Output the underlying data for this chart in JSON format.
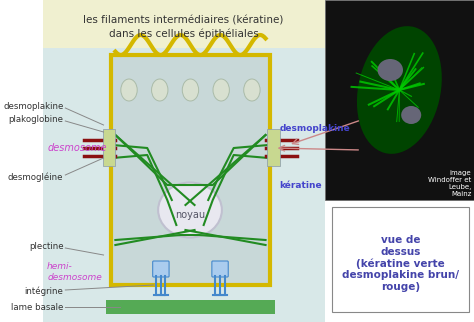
{
  "title_line1": "les filaments intermédiaires (kératine)",
  "title_line2": "dans les cellules épithéliales",
  "title_bg": "#f0f0d0",
  "main_bg": "#d8e8e8",
  "cell_bg": "#c8d8d8",
  "cell_border": "#d4b800",
  "nucleus_color": "#e8e8f0",
  "nucleus_border": "#c0c0d0",
  "green_filament": "#228B22",
  "red_cable": "#8B1010",
  "blue_integrin": "#4488cc",
  "basal_lamina": "#55aa55",
  "labels": {
    "desmoplakine_left": "desmoplakine",
    "plakoglobine": "plakoglobine",
    "desmosome": "desmosome",
    "desmogleine": "desmogléine",
    "desmoplakine_right": "desmoplakine",
    "keratine": "kératine",
    "plectine": "plectine",
    "hemi_desmosome": "hemi-\ndesmosome",
    "integrine": "intégrine",
    "lame_basale": "lame basale",
    "noyau": "noyau"
  },
  "label_colors": {
    "desmosome": "#cc44cc",
    "hemi_desmosome": "#cc44cc",
    "desmoplakine_right": "#4444cc",
    "keratine": "#4444cc",
    "default": "#333333"
  },
  "photo_bg": "#111111",
  "photo_text": "image\nWindoffer et\nLeube,\nMainz",
  "vuedessus_text": "vue de\ndessus\n(kératine verte\ndesmoplakine brun/\nrouge)",
  "vuedessus_color": "#4444aa",
  "arrow_color": "#cc8888"
}
